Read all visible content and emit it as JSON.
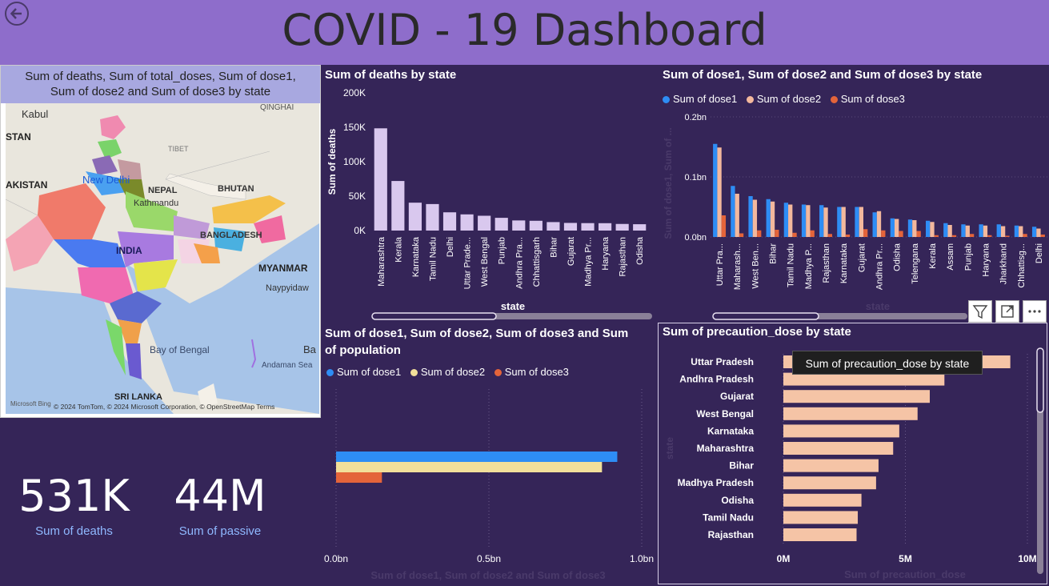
{
  "header": {
    "title": "COVID - 19 Dashboard"
  },
  "map": {
    "title_line1": "Sum of deaths, Sum of total_doses, Sum of dose1,",
    "title_line2": "Sum of dose2 and Sum of dose3 by state",
    "labels": [
      "Kabul",
      "STAN",
      "AKISTAN",
      "QINGHAI",
      "TIBET",
      "New Delhi",
      "NEPAL",
      "Kathmandu",
      "BHUTAN",
      "BANGLADESH",
      "INDIA",
      "MYANMAR",
      "Naypyidaw",
      "Bay of Bengal",
      "Andaman Sea",
      "SRI LANKA",
      "Ba"
    ],
    "attribution": "© 2024 TomTom, © 2024 Microsoft Corporation, © OpenStreetMap  Terms",
    "brand": "Microsoft Bing"
  },
  "kpis": [
    {
      "value": "531K",
      "label": "Sum of deaths"
    },
    {
      "value": "44M",
      "label": "Sum of passive"
    }
  ],
  "tooltip": "Sum of precaution_dose by state",
  "chart_data": [
    {
      "type": "bar",
      "title": "Sum of deaths by state",
      "xlabel": "state",
      "ylabel": "Sum of deaths",
      "ylim": [
        0,
        200000
      ],
      "yticks": [
        "0K",
        "50K",
        "100K",
        "150K",
        "200K"
      ],
      "categories": [
        "Maharashtra",
        "Kerala",
        "Karnataka",
        "Tamil Nadu",
        "Delhi",
        "Uttar Prade...",
        "West Bengal",
        "Punjab",
        "Andhra Pra...",
        "Chhattisgarh",
        "Bihar",
        "Gujarat",
        "Madhya Pr...",
        "Haryana",
        "Rajasthan",
        "Odisha"
      ],
      "values": [
        148500,
        72000,
        40500,
        38500,
        26500,
        23500,
        21500,
        18500,
        14700,
        14200,
        12300,
        11100,
        10800,
        10700,
        9600,
        9200
      ],
      "color": "#d9c8ee"
    },
    {
      "type": "bar",
      "title": "Sum of dose1, Sum of dose2 and Sum of dose3 by state",
      "xlabel": "state",
      "ylabel": "Sum of dose1, Sum of ...",
      "ylim": [
        0,
        0.2
      ],
      "yticks": [
        "0.0bn",
        "0.1bn",
        "0.2bn"
      ],
      "categories": [
        "Uttar Pra...",
        "Maharash...",
        "West Ben...",
        "Bihar",
        "Tamil Nadu",
        "Madhya P...",
        "Rajasthan",
        "Karnataka",
        "Gujarat",
        "Andhra Pr...",
        "Odisha",
        "Telengana",
        "Kerala",
        "Assam",
        "Punjab",
        "Haryana",
        "Jharkhand",
        "Chhattisg...",
        "Delhi"
      ],
      "series": [
        {
          "name": "Sum of dose1",
          "color": "#2e8df5",
          "values": [
            0.155,
            0.085,
            0.068,
            0.063,
            0.057,
            0.054,
            0.053,
            0.05,
            0.05,
            0.041,
            0.031,
            0.029,
            0.027,
            0.023,
            0.021,
            0.021,
            0.021,
            0.019,
            0.017
          ]
        },
        {
          "name": "Sum of dose2",
          "color": "#f3b89d",
          "values": [
            0.149,
            0.072,
            0.062,
            0.059,
            0.054,
            0.053,
            0.049,
            0.05,
            0.05,
            0.043,
            0.03,
            0.028,
            0.025,
            0.02,
            0.019,
            0.019,
            0.018,
            0.018,
            0.014
          ]
        },
        {
          "name": "Sum of dose3",
          "color": "#e4643a",
          "values": [
            0.036,
            0.006,
            0.011,
            0.012,
            0.007,
            0.011,
            0.005,
            0.004,
            0.013,
            0.011,
            0.01,
            0.01,
            0.003,
            0.003,
            0.005,
            0.003,
            0.002,
            0.005,
            0.004
          ]
        }
      ]
    },
    {
      "type": "bar",
      "orientation": "horizontal",
      "title_line1": "Sum of dose1, Sum of dose2, Sum of dose3 and Sum",
      "title_line2": "of population",
      "xlabel": "Sum of dose1, Sum of dose2 and Sum of dose3",
      "xlim": [
        0,
        1.0
      ],
      "xticks": [
        "0.0bn",
        "0.5bn",
        "1.0bn"
      ],
      "series": [
        {
          "name": "Sum of dose1",
          "color": "#2e8df5",
          "value": 0.92
        },
        {
          "name": "Sum of dose2",
          "color": "#f2df9a",
          "value": 0.87
        },
        {
          "name": "Sum of dose3",
          "color": "#e4643a",
          "value": 0.15
        }
      ]
    },
    {
      "type": "bar",
      "orientation": "horizontal",
      "title": "Sum of precaution_dose by state",
      "xlabel": "Sum of precaution_dose",
      "ylabel": "state",
      "xlim": [
        0,
        10000000
      ],
      "xticks": [
        "0M",
        "5M",
        "10M"
      ],
      "categories": [
        "Uttar Pradesh",
        "Andhra Pradesh",
        "Gujarat",
        "West Bengal",
        "Karnataka",
        "Maharashtra",
        "Bihar",
        "Madhya Pradesh",
        "Odisha",
        "Tamil Nadu",
        "Rajasthan"
      ],
      "values": [
        9300000,
        6600000,
        6000000,
        5500000,
        4750000,
        4500000,
        3900000,
        3800000,
        3200000,
        3050000,
        3000000
      ],
      "color": "#f5c4a6"
    }
  ]
}
